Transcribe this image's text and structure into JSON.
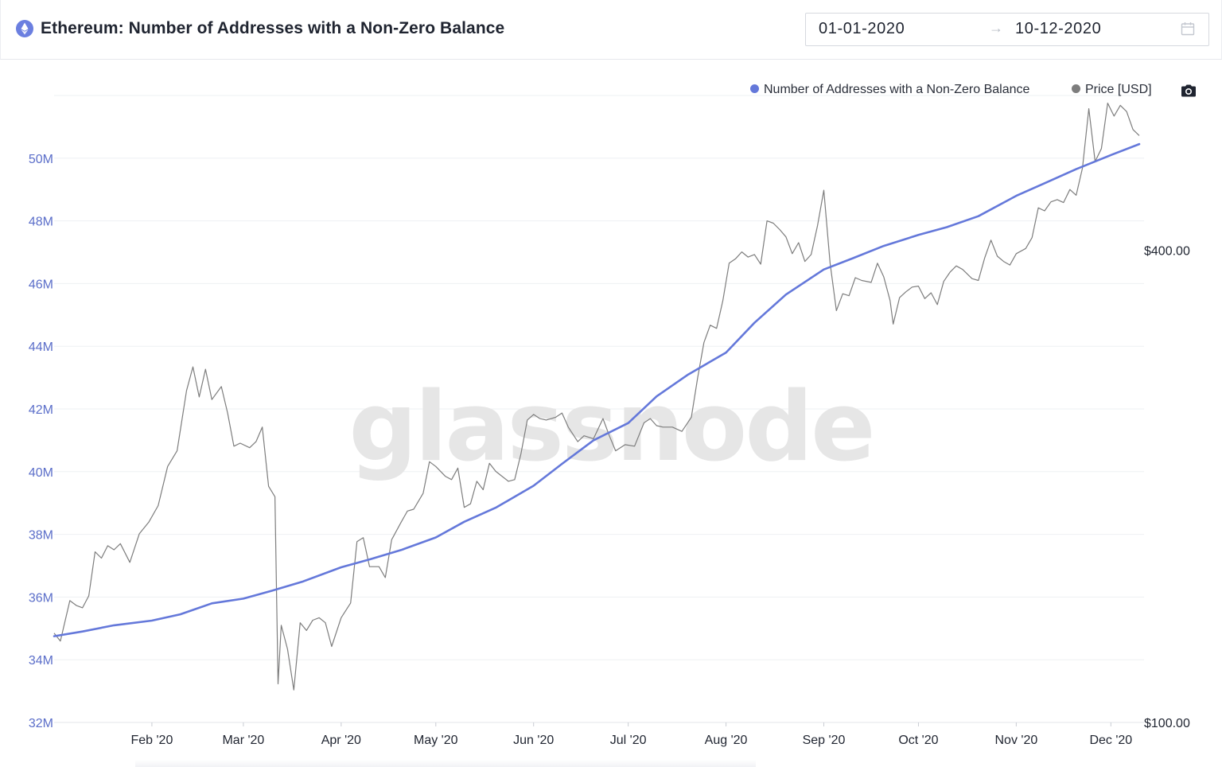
{
  "header": {
    "title": "Ethereum: Number of Addresses with a Non-Zero Balance",
    "date_from": "01-01-2020",
    "date_to": "10-12-2020",
    "arrow": "→"
  },
  "legend": {
    "addresses": "Number of Addresses with a Non-Zero Balance",
    "price": "Price [USD]"
  },
  "watermark": "glassnode",
  "colors": {
    "addresses": "#6478da",
    "price": "#7d7d7d",
    "accent": "#6b7fe0",
    "axis_left": "#5b6ec9"
  },
  "chart_data": {
    "type": "line",
    "title": "Ethereum: Number of Addresses with a Non-Zero Balance",
    "x_range": [
      "2020-01-01",
      "2020-12-10"
    ],
    "x_ticks": [
      {
        "date": "2020-02-01",
        "label": "Feb '20"
      },
      {
        "date": "2020-03-01",
        "label": "Mar '20"
      },
      {
        "date": "2020-04-01",
        "label": "Apr '20"
      },
      {
        "date": "2020-05-01",
        "label": "May '20"
      },
      {
        "date": "2020-06-01",
        "label": "Jun '20"
      },
      {
        "date": "2020-07-01",
        "label": "Jul '20"
      },
      {
        "date": "2020-08-01",
        "label": "Aug '20"
      },
      {
        "date": "2020-09-01",
        "label": "Sep '20"
      },
      {
        "date": "2020-10-01",
        "label": "Oct '20"
      },
      {
        "date": "2020-11-01",
        "label": "Nov '20"
      },
      {
        "date": "2020-12-01",
        "label": "Dec '20"
      }
    ],
    "y_left": {
      "range": [
        32000000,
        52000000
      ],
      "ticks": [
        {
          "value": 32000000,
          "label": "32M"
        },
        {
          "value": 34000000,
          "label": "34M"
        },
        {
          "value": 36000000,
          "label": "36M"
        },
        {
          "value": 38000000,
          "label": "38M"
        },
        {
          "value": 40000000,
          "label": "40M"
        },
        {
          "value": 42000000,
          "label": "42M"
        },
        {
          "value": 44000000,
          "label": "44M"
        },
        {
          "value": 46000000,
          "label": "46M"
        },
        {
          "value": 48000000,
          "label": "48M"
        },
        {
          "value": 50000000,
          "label": "50M"
        }
      ]
    },
    "y_right": {
      "scale": "log",
      "range": [
        100,
        630
      ],
      "ticks": [
        {
          "value": 100,
          "label": "$100.00"
        },
        {
          "value": 400,
          "label": "$400.00"
        }
      ]
    },
    "grid": true,
    "legend_position": "top-right",
    "series": [
      {
        "name": "Number of Addresses with a Non-Zero Balance",
        "axis": "left",
        "points": [
          [
            "2020-01-01",
            34750000
          ],
          [
            "2020-01-10",
            34900000
          ],
          [
            "2020-01-20",
            35100000
          ],
          [
            "2020-02-01",
            35250000
          ],
          [
            "2020-02-10",
            35450000
          ],
          [
            "2020-02-20",
            35800000
          ],
          [
            "2020-03-01",
            35950000
          ],
          [
            "2020-03-10",
            36200000
          ],
          [
            "2020-03-20",
            36500000
          ],
          [
            "2020-04-01",
            36950000
          ],
          [
            "2020-04-10",
            37200000
          ],
          [
            "2020-04-20",
            37500000
          ],
          [
            "2020-05-01",
            37900000
          ],
          [
            "2020-05-10",
            38400000
          ],
          [
            "2020-05-20",
            38850000
          ],
          [
            "2020-06-01",
            39550000
          ],
          [
            "2020-06-10",
            40250000
          ],
          [
            "2020-06-20",
            41000000
          ],
          [
            "2020-07-01",
            41550000
          ],
          [
            "2020-07-10",
            42400000
          ],
          [
            "2020-07-20",
            43100000
          ],
          [
            "2020-08-01",
            43800000
          ],
          [
            "2020-08-10",
            44750000
          ],
          [
            "2020-08-20",
            45650000
          ],
          [
            "2020-09-01",
            46450000
          ],
          [
            "2020-09-10",
            46800000
          ],
          [
            "2020-09-20",
            47200000
          ],
          [
            "2020-10-01",
            47550000
          ],
          [
            "2020-10-10",
            47800000
          ],
          [
            "2020-10-20",
            48150000
          ],
          [
            "2020-11-01",
            48800000
          ],
          [
            "2020-11-10",
            49200000
          ],
          [
            "2020-11-20",
            49650000
          ],
          [
            "2020-12-01",
            50100000
          ],
          [
            "2020-12-10",
            50450000
          ]
        ]
      },
      {
        "name": "Price [USD]",
        "axis": "right",
        "points": [
          [
            "2020-01-01",
            130
          ],
          [
            "2020-01-03",
            127
          ],
          [
            "2020-01-06",
            143
          ],
          [
            "2020-01-08",
            141
          ],
          [
            "2020-01-10",
            140
          ],
          [
            "2020-01-12",
            145
          ],
          [
            "2020-01-14",
            165
          ],
          [
            "2020-01-16",
            162
          ],
          [
            "2020-01-18",
            168
          ],
          [
            "2020-01-20",
            166
          ],
          [
            "2020-01-22",
            169
          ],
          [
            "2020-01-25",
            160
          ],
          [
            "2020-01-28",
            174
          ],
          [
            "2020-01-31",
            180
          ],
          [
            "2020-02-03",
            189
          ],
          [
            "2020-02-06",
            212
          ],
          [
            "2020-02-09",
            222
          ],
          [
            "2020-02-12",
            265
          ],
          [
            "2020-02-14",
            284
          ],
          [
            "2020-02-16",
            260
          ],
          [
            "2020-02-18",
            282
          ],
          [
            "2020-02-20",
            258
          ],
          [
            "2020-02-23",
            268
          ],
          [
            "2020-02-25",
            248
          ],
          [
            "2020-02-27",
            225
          ],
          [
            "2020-02-29",
            227
          ],
          [
            "2020-03-03",
            224
          ],
          [
            "2020-03-05",
            228
          ],
          [
            "2020-03-07",
            238
          ],
          [
            "2020-03-09",
            200
          ],
          [
            "2020-03-11",
            194
          ],
          [
            "2020-03-12",
            112
          ],
          [
            "2020-03-13",
            133
          ],
          [
            "2020-03-15",
            124
          ],
          [
            "2020-03-17",
            110
          ],
          [
            "2020-03-19",
            134
          ],
          [
            "2020-03-21",
            131
          ],
          [
            "2020-03-23",
            135
          ],
          [
            "2020-03-25",
            136
          ],
          [
            "2020-03-27",
            134
          ],
          [
            "2020-03-29",
            125
          ],
          [
            "2020-04-01",
            136
          ],
          [
            "2020-04-04",
            142
          ],
          [
            "2020-04-06",
            170
          ],
          [
            "2020-04-08",
            172
          ],
          [
            "2020-04-10",
            158
          ],
          [
            "2020-04-13",
            158
          ],
          [
            "2020-04-15",
            153
          ],
          [
            "2020-04-17",
            171
          ],
          [
            "2020-04-20",
            180
          ],
          [
            "2020-04-22",
            186
          ],
          [
            "2020-04-24",
            187
          ],
          [
            "2020-04-27",
            196
          ],
          [
            "2020-04-29",
            215
          ],
          [
            "2020-05-01",
            212
          ],
          [
            "2020-05-04",
            206
          ],
          [
            "2020-05-06",
            204
          ],
          [
            "2020-05-08",
            211
          ],
          [
            "2020-05-10",
            188
          ],
          [
            "2020-05-12",
            190
          ],
          [
            "2020-05-14",
            203
          ],
          [
            "2020-05-16",
            198
          ],
          [
            "2020-05-18",
            214
          ],
          [
            "2020-05-20",
            209
          ],
          [
            "2020-05-22",
            206
          ],
          [
            "2020-05-24",
            203
          ],
          [
            "2020-05-26",
            204
          ],
          [
            "2020-05-28",
            220
          ],
          [
            "2020-05-30",
            243
          ],
          [
            "2020-06-01",
            247
          ],
          [
            "2020-06-03",
            244
          ],
          [
            "2020-06-05",
            243
          ],
          [
            "2020-06-08",
            245
          ],
          [
            "2020-06-10",
            248
          ],
          [
            "2020-06-12",
            238
          ],
          [
            "2020-06-15",
            228
          ],
          [
            "2020-06-17",
            232
          ],
          [
            "2020-06-20",
            230
          ],
          [
            "2020-06-23",
            244
          ],
          [
            "2020-06-25",
            232
          ],
          [
            "2020-06-27",
            222
          ],
          [
            "2020-06-30",
            226
          ],
          [
            "2020-07-03",
            225
          ],
          [
            "2020-07-06",
            241
          ],
          [
            "2020-07-08",
            244
          ],
          [
            "2020-07-10",
            239
          ],
          [
            "2020-07-12",
            238
          ],
          [
            "2020-07-15",
            238
          ],
          [
            "2020-07-18",
            235
          ],
          [
            "2020-07-21",
            245
          ],
          [
            "2020-07-23",
            275
          ],
          [
            "2020-07-25",
            305
          ],
          [
            "2020-07-27",
            321
          ],
          [
            "2020-07-29",
            318
          ],
          [
            "2020-07-31",
            345
          ],
          [
            "2020-08-02",
            385
          ],
          [
            "2020-08-04",
            390
          ],
          [
            "2020-08-06",
            398
          ],
          [
            "2020-08-08",
            392
          ],
          [
            "2020-08-10",
            395
          ],
          [
            "2020-08-12",
            384
          ],
          [
            "2020-08-14",
            436
          ],
          [
            "2020-08-16",
            433
          ],
          [
            "2020-08-18",
            425
          ],
          [
            "2020-08-20",
            416
          ],
          [
            "2020-08-22",
            396
          ],
          [
            "2020-08-24",
            409
          ],
          [
            "2020-08-26",
            387
          ],
          [
            "2020-08-28",
            395
          ],
          [
            "2020-08-30",
            430
          ],
          [
            "2020-09-01",
            477
          ],
          [
            "2020-09-03",
            385
          ],
          [
            "2020-09-05",
            335
          ],
          [
            "2020-09-07",
            352
          ],
          [
            "2020-09-09",
            350
          ],
          [
            "2020-09-11",
            369
          ],
          [
            "2020-09-13",
            366
          ],
          [
            "2020-09-16",
            364
          ],
          [
            "2020-09-18",
            385
          ],
          [
            "2020-09-20",
            370
          ],
          [
            "2020-09-22",
            345
          ],
          [
            "2020-09-23",
            322
          ],
          [
            "2020-09-25",
            348
          ],
          [
            "2020-09-27",
            354
          ],
          [
            "2020-09-29",
            359
          ],
          [
            "2020-10-01",
            360
          ],
          [
            "2020-10-03",
            347
          ],
          [
            "2020-10-05",
            353
          ],
          [
            "2020-10-07",
            341
          ],
          [
            "2020-10-09",
            365
          ],
          [
            "2020-10-11",
            375
          ],
          [
            "2020-10-13",
            382
          ],
          [
            "2020-10-15",
            378
          ],
          [
            "2020-10-18",
            368
          ],
          [
            "2020-10-20",
            366
          ],
          [
            "2020-10-22",
            391
          ],
          [
            "2020-10-24",
            412
          ],
          [
            "2020-10-26",
            393
          ],
          [
            "2020-10-28",
            387
          ],
          [
            "2020-10-30",
            383
          ],
          [
            "2020-11-01",
            396
          ],
          [
            "2020-11-04",
            402
          ],
          [
            "2020-11-06",
            415
          ],
          [
            "2020-11-08",
            453
          ],
          [
            "2020-11-10",
            449
          ],
          [
            "2020-11-12",
            461
          ],
          [
            "2020-11-14",
            464
          ],
          [
            "2020-11-16",
            460
          ],
          [
            "2020-11-18",
            478
          ],
          [
            "2020-11-20",
            470
          ],
          [
            "2020-11-22",
            509
          ],
          [
            "2020-11-24",
            606
          ],
          [
            "2020-11-26",
            519
          ],
          [
            "2020-11-28",
            539
          ],
          [
            "2020-11-30",
            616
          ],
          [
            "2020-12-02",
            593
          ],
          [
            "2020-12-04",
            612
          ],
          [
            "2020-12-06",
            601
          ],
          [
            "2020-12-08",
            570
          ],
          [
            "2020-12-10",
            560
          ]
        ]
      }
    ]
  }
}
